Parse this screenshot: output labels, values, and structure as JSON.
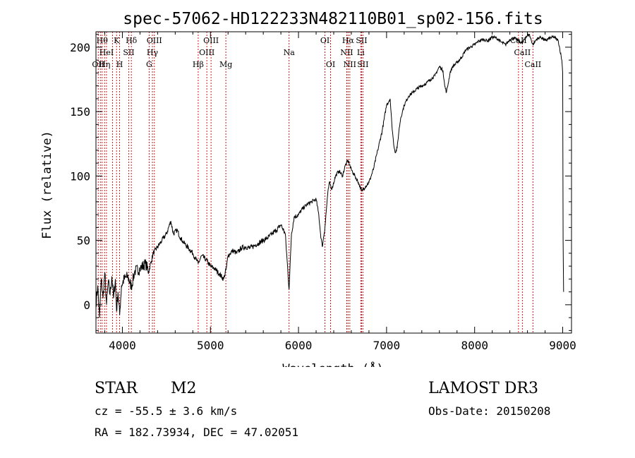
{
  "chart_data": {
    "type": "line",
    "title": "spec-57062-HD122233N482110B01_sp02-156.fits",
    "xlabel": "Wavelength (Å)",
    "ylabel": "Flux (relative)",
    "xlim": [
      3700,
      9100
    ],
    "ylim": [
      -22,
      212
    ],
    "xticks": [
      4000,
      5000,
      6000,
      7000,
      8000,
      9000
    ],
    "xtick_labels": [
      "4000",
      "5000",
      "6000",
      "7000",
      "8000",
      "9000"
    ],
    "yticks": [
      0,
      50,
      100,
      150,
      200
    ],
    "ytick_labels": [
      "0",
      "50",
      "100",
      "150",
      "200"
    ],
    "series": [
      {
        "name": "flux",
        "x": [
          3700,
          3720,
          3740,
          3760,
          3780,
          3800,
          3820,
          3840,
          3860,
          3880,
          3900,
          3920,
          3934,
          3950,
          3969,
          3990,
          4020,
          4060,
          4102,
          4140,
          4200,
          4260,
          4300,
          4350,
          4400,
          4450,
          4500,
          4550,
          4580,
          4620,
          4660,
          4700,
          4750,
          4800,
          4861,
          4900,
          4950,
          5000,
          5050,
          5100,
          5150,
          5180,
          5200,
          5250,
          5300,
          5350,
          5400,
          5450,
          5500,
          5550,
          5600,
          5650,
          5700,
          5750,
          5800,
          5850,
          5893,
          5920,
          5950,
          6000,
          6050,
          6100,
          6150,
          6200,
          6230,
          6250,
          6270,
          6300,
          6330,
          6350,
          6380,
          6420,
          6460,
          6500,
          6530,
          6563,
          6600,
          6640,
          6680,
          6720,
          6760,
          6800,
          6850,
          6900,
          6950,
          7000,
          7040,
          7060,
          7080,
          7100,
          7120,
          7140,
          7160,
          7180,
          7200,
          7250,
          7300,
          7350,
          7400,
          7450,
          7500,
          7550,
          7600,
          7640,
          7660,
          7680,
          7700,
          7720,
          7750,
          7800,
          7850,
          7900,
          7950,
          8000,
          8050,
          8100,
          8150,
          8200,
          8250,
          8300,
          8350,
          8400,
          8450,
          8498,
          8542,
          8580,
          8620,
          8662,
          8700,
          8750,
          8800,
          8850,
          8900,
          8950,
          8990,
          9000,
          9005,
          9010
        ],
        "y": [
          0,
          15,
          -10,
          20,
          5,
          25,
          0,
          18,
          8,
          22,
          5,
          20,
          -5,
          10,
          -8,
          15,
          20,
          22,
          14,
          26,
          28,
          32,
          26,
          40,
          45,
          50,
          55,
          65,
          55,
          58,
          52,
          48,
          44,
          40,
          32,
          38,
          35,
          30,
          28,
          24,
          20,
          28,
          38,
          42,
          40,
          44,
          45,
          44,
          46,
          48,
          50,
          52,
          55,
          58,
          62,
          55,
          12,
          55,
          68,
          70,
          75,
          78,
          80,
          82,
          70,
          55,
          45,
          60,
          85,
          95,
          90,
          100,
          104,
          100,
          108,
          112,
          105,
          100,
          95,
          88,
          92,
          95,
          105,
          120,
          135,
          155,
          160,
          140,
          125,
          118,
          122,
          135,
          145,
          150,
          155,
          162,
          165,
          168,
          170,
          172,
          175,
          178,
          185,
          182,
          170,
          165,
          172,
          180,
          185,
          188,
          192,
          198,
          200,
          202,
          205,
          206,
          205,
          208,
          207,
          204,
          202,
          206,
          207,
          205,
          203,
          208,
          210,
          202,
          206,
          208,
          205,
          207,
          208,
          205,
          190,
          180,
          50,
          10
        ]
      }
    ],
    "line_markers": [
      {
        "wavelength": 3726,
        "label": "OII",
        "row": 3
      },
      {
        "wavelength": 3750,
        "label": "",
        "row": 0
      },
      {
        "wavelength": 3770,
        "label": "Hθ",
        "row": 1
      },
      {
        "wavelength": 3798,
        "label": "Hη",
        "row": 3
      },
      {
        "wavelength": 3820,
        "label": "HeI",
        "row": 2
      },
      {
        "wavelength": 3889,
        "label": "",
        "row": 0
      },
      {
        "wavelength": 3934,
        "label": "K",
        "row": 1
      },
      {
        "wavelength": 3969,
        "label": "H",
        "row": 3
      },
      {
        "wavelength": 4072,
        "label": "SII",
        "row": 2
      },
      {
        "wavelength": 4102,
        "label": "Hδ",
        "row": 1
      },
      {
        "wavelength": 4304,
        "label": "G",
        "row": 3
      },
      {
        "wavelength": 4341,
        "label": "Hγ",
        "row": 2
      },
      {
        "wavelength": 4363,
        "label": "OIII",
        "row": 1
      },
      {
        "wavelength": 4861,
        "label": "Hβ",
        "row": 3
      },
      {
        "wavelength": 4959,
        "label": "OIII",
        "row": 2
      },
      {
        "wavelength": 5007,
        "label": "OIII",
        "row": 1
      },
      {
        "wavelength": 5175,
        "label": "Mg",
        "row": 3
      },
      {
        "wavelength": 5893,
        "label": "Na",
        "row": 2
      },
      {
        "wavelength": 6300,
        "label": "OI",
        "row": 1
      },
      {
        "wavelength": 6364,
        "label": "OI",
        "row": 3
      },
      {
        "wavelength": 6548,
        "label": "NII",
        "row": 2
      },
      {
        "wavelength": 6563,
        "label": "Hα",
        "row": 1
      },
      {
        "wavelength": 6583,
        "label": "NII",
        "row": 3
      },
      {
        "wavelength": 6707,
        "label": "Li",
        "row": 2
      },
      {
        "wavelength": 6716,
        "label": "SII",
        "row": 1
      },
      {
        "wavelength": 6731,
        "label": "SII",
        "row": 3
      },
      {
        "wavelength": 8498,
        "label": "CaII",
        "row": 1
      },
      {
        "wavelength": 8542,
        "label": "CaII",
        "row": 2
      },
      {
        "wavelength": 8662,
        "label": "CaII",
        "row": 3
      }
    ]
  },
  "info": {
    "class_label": "STAR",
    "subclass": "M2",
    "survey": "LAMOST DR3",
    "cz": "cz = -55.5 ± 3.6 km/s",
    "obs_date": "Obs-Date: 20150208",
    "radec": "RA = 182.73934, DEC =  47.02051"
  },
  "colors": {
    "line_marker": "#cc0000",
    "spectrum": "#000000",
    "axis": "#000000"
  }
}
